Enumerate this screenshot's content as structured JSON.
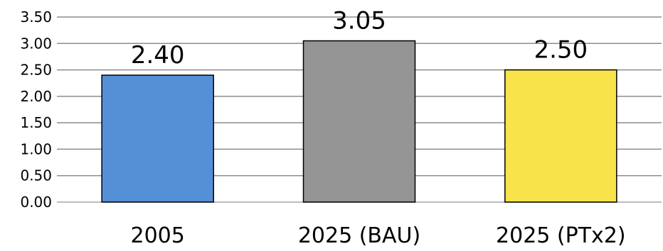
{
  "chart_data": {
    "type": "bar",
    "categories": [
      "2005",
      "2025 (BAU)",
      "2025 (PTx2)"
    ],
    "values": [
      2.4,
      3.05,
      2.5
    ],
    "data_labels": [
      "2.40",
      "3.05",
      "2.50"
    ],
    "bar_colors": [
      "#5590D6",
      "#959595",
      "#F8E44A"
    ],
    "ylim": [
      0,
      3.5
    ],
    "yticks": [
      0,
      0.5,
      1,
      1.5,
      2,
      2.5,
      3,
      3.5
    ],
    "ytick_labels": [
      "0.00",
      "0.50",
      "1.00",
      "1.50",
      "2.00",
      "2.50",
      "3.00",
      "3.50"
    ],
    "grid": true,
    "title": "",
    "xlabel": "",
    "ylabel": ""
  }
}
